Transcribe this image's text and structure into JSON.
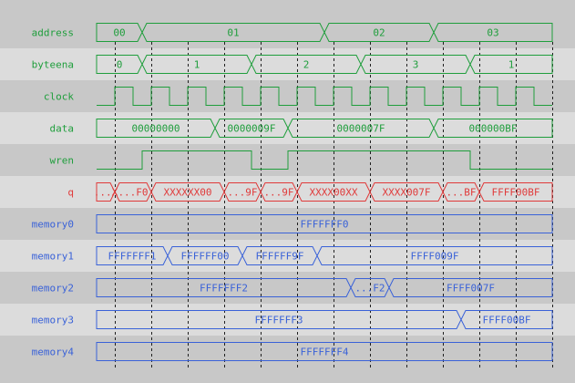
{
  "colors": {
    "green": "#1f9e3c",
    "red": "#e03a3a",
    "blue": "#3a62d8",
    "row_dark": "#c8c8c8",
    "row_light": "#dcdcdc",
    "grid": "#202020"
  },
  "time_end": 50,
  "clock": {
    "first_rise": 2,
    "period": 4
  },
  "gridlines": [
    2,
    6,
    10,
    14,
    18,
    22,
    26,
    30,
    34,
    38,
    42,
    46,
    50
  ],
  "signals": [
    {
      "name": "address",
      "type": "bus",
      "color": "green",
      "segments": [
        {
          "start": 0,
          "value": "00"
        },
        {
          "start": 5,
          "value": "01"
        },
        {
          "start": 25,
          "value": "02"
        },
        {
          "start": 37,
          "value": "03"
        }
      ]
    },
    {
      "name": "byteena",
      "type": "bus",
      "color": "green",
      "segments": [
        {
          "start": 0,
          "value": "0"
        },
        {
          "start": 5,
          "value": "1"
        },
        {
          "start": 17,
          "value": "2"
        },
        {
          "start": 29,
          "value": "3"
        },
        {
          "start": 41,
          "value": "1"
        }
      ]
    },
    {
      "name": "clock",
      "type": "clock",
      "color": "green"
    },
    {
      "name": "data",
      "type": "bus",
      "color": "green",
      "segments": [
        {
          "start": 0,
          "value": "00000000"
        },
        {
          "start": 13,
          "value": "0000009F"
        },
        {
          "start": 21,
          "value": "0000007F"
        },
        {
          "start": 37,
          "value": "000000BF"
        }
      ]
    },
    {
      "name": "wren",
      "type": "bit",
      "color": "green",
      "levels": [
        {
          "start": 0,
          "value": 0
        },
        {
          "start": 5,
          "value": 1
        },
        {
          "start": 17,
          "value": 0
        },
        {
          "start": 21,
          "value": 1
        },
        {
          "start": 41,
          "value": 0
        }
      ]
    },
    {
      "name": "q",
      "type": "bus",
      "color": "red",
      "segments": [
        {
          "start": 0,
          "value": "...X"
        },
        {
          "start": 2,
          "value": "...F0"
        },
        {
          "start": 6,
          "value": "XXXXXX00"
        },
        {
          "start": 14,
          "value": "...9F"
        },
        {
          "start": 18,
          "value": "...9F"
        },
        {
          "start": 22,
          "value": "XXXX00XX"
        },
        {
          "start": 30,
          "value": "XXXX007F"
        },
        {
          "start": 38,
          "value": "...BF"
        },
        {
          "start": 42,
          "value": "FFFF00BF"
        }
      ]
    },
    {
      "name": "memory0",
      "type": "bus",
      "color": "blue",
      "segments": [
        {
          "start": 0,
          "value": "FFFFFFF0"
        }
      ]
    },
    {
      "name": "memory1",
      "type": "bus",
      "color": "blue",
      "segments": [
        {
          "start": 0,
          "value": "FFFFFFF1"
        },
        {
          "start": 7.8,
          "value": "FFFFFF00"
        },
        {
          "start": 16,
          "value": "FFFFFF9F"
        },
        {
          "start": 24.2,
          "value": "FFFF009F"
        }
      ]
    },
    {
      "name": "memory2",
      "type": "bus",
      "color": "blue",
      "segments": [
        {
          "start": 0,
          "value": "FFFFFFF2"
        },
        {
          "start": 27.9,
          "value": "...F2"
        },
        {
          "start": 32.1,
          "value": "FFFF007F"
        }
      ]
    },
    {
      "name": "memory3",
      "type": "bus",
      "color": "blue",
      "segments": [
        {
          "start": 0,
          "value": "FFFFFFF3"
        },
        {
          "start": 40,
          "value": "FFFF00BF"
        }
      ]
    },
    {
      "name": "memory4",
      "type": "bus",
      "color": "blue",
      "segments": [
        {
          "start": 0,
          "value": "FFFFFFF4"
        }
      ]
    }
  ]
}
